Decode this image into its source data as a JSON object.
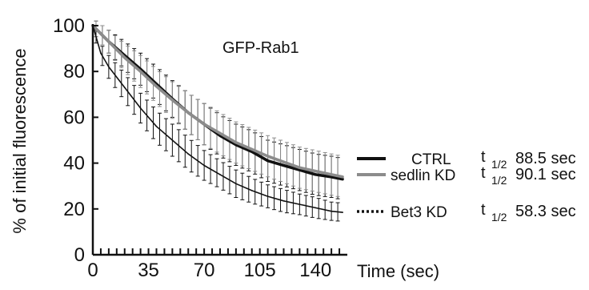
{
  "chart_data": {
    "type": "line",
    "title": "GFP-Rab1",
    "xlabel": "Time (sec)",
    "ylabel": "% of initial fluorescence",
    "xlim": [
      0,
      160
    ],
    "ylim": [
      0,
      100
    ],
    "xticks": [
      "0",
      "35",
      "70",
      "105",
      "140"
    ],
    "yticks": [
      "0",
      "20",
      "40",
      "60",
      "80",
      "100"
    ],
    "grid": false,
    "legend_position": "right",
    "series": [
      {
        "name": "CTRL",
        "color": "#111111",
        "style": "solid-thick",
        "halftime_label": "t",
        "halftime_sub": "1/2",
        "halftime_value": "88.5 sec",
        "x": [
          0,
          10,
          20,
          30,
          40,
          50,
          60,
          70,
          80,
          90,
          100,
          110,
          120,
          130,
          140,
          150,
          157
        ],
        "y": [
          100,
          93,
          87,
          81,
          74.5,
          68,
          62,
          57,
          52,
          48,
          45,
          41,
          39,
          37,
          35,
          34,
          33
        ],
        "error": [
          3,
          5,
          6,
          7,
          7.5,
          8,
          8.5,
          9,
          9,
          9,
          9,
          9,
          9,
          9,
          9,
          9,
          9
        ]
      },
      {
        "name": "sedlin KD",
        "color": "#8c8c8c",
        "style": "solid-gray",
        "halftime_label": "t",
        "halftime_sub": "1/2",
        "halftime_value": "90.1 sec",
        "x": [
          0,
          10,
          20,
          30,
          40,
          50,
          60,
          70,
          80,
          90,
          100,
          110,
          120,
          130,
          140,
          150,
          157
        ],
        "y": [
          100,
          93,
          86,
          80,
          73.5,
          67.5,
          62,
          57,
          53,
          49,
          46,
          43,
          40.5,
          38,
          36.5,
          35,
          34
        ],
        "error": [
          3,
          5,
          6,
          7,
          7.5,
          8,
          8.5,
          9,
          9,
          9,
          9,
          9,
          9,
          9,
          9,
          9,
          9
        ]
      },
      {
        "name": "Bet3 KD",
        "color": "#111111",
        "style": "thin",
        "halftime_label": "t",
        "halftime_sub": "1/2",
        "halftime_value": "58.3 sec",
        "x": [
          0,
          5,
          10,
          20,
          30,
          40,
          50,
          60,
          70,
          80,
          90,
          100,
          110,
          120,
          130,
          140,
          150,
          157
        ],
        "y": [
          100,
          88,
          82,
          73,
          64,
          56,
          50,
          44,
          39,
          35,
          31,
          28,
          25.5,
          23.5,
          22,
          20.5,
          19,
          18.5
        ],
        "error": [
          2,
          4,
          5,
          6,
          6.5,
          7,
          7,
          7,
          6.5,
          6,
          6,
          5.5,
          5,
          5,
          4.5,
          4.5,
          4,
          4
        ]
      }
    ]
  }
}
